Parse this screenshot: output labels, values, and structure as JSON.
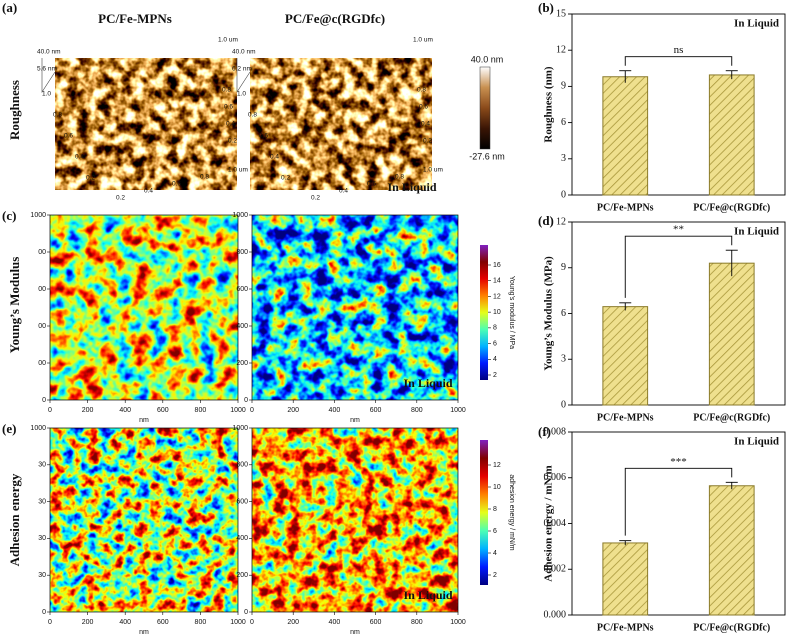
{
  "figure": {
    "panel_labels": [
      "(a)",
      "(b)",
      "(c)",
      "(d)",
      "(e)",
      "(f)"
    ],
    "row_labels": [
      "Roughness",
      "Young’s Modulus",
      "Adhesion energy"
    ],
    "column_titles": [
      "PC/Fe-MPNs",
      "PC/Fe@c(RGDfc)"
    ],
    "condition": "In Liquid",
    "afm_3d": [
      {
        "z_labels": [
          "40.0 nm",
          "5.6 nm"
        ],
        "top_label": "1.0 um",
        "depth_ticks": [
          "1.0",
          "0.8",
          "0.6",
          "0.4",
          "0.2"
        ],
        "side_ticks": [
          "0.8",
          "0.6",
          "0.4",
          "0.2"
        ],
        "width_ticks": [
          "0.2",
          "0.4",
          "0.6",
          "0.8",
          "1.0 um"
        ]
      },
      {
        "z_labels": [
          "40.0 nm",
          "6.2 nm"
        ],
        "top_label": "1.0 um",
        "depth_ticks": [
          "1.0",
          "0.8",
          "0.6",
          "0.4",
          "0.2"
        ],
        "side_ticks": [
          "0.8",
          "0.6",
          "0.4",
          "0.2"
        ],
        "width_ticks": [
          "0.2",
          "0.4",
          "0.6",
          "0.8",
          "1.0 um"
        ]
      }
    ],
    "height_colorbar": {
      "max_label": "40.0 nm",
      "min_label": "-27.6 nm"
    },
    "map_axes": {
      "xticks": [
        0,
        200,
        400,
        600,
        800,
        1000
      ],
      "yticks": [
        0,
        200,
        400,
        600,
        800,
        1000
      ],
      "xlabel": "nm",
      "cropped_yticks": [
        [
          "1000",
          "00",
          "00",
          "00",
          "00",
          "0"
        ],
        [
          "1000",
          "30",
          "30",
          "30",
          "30",
          "0"
        ]
      ]
    },
    "modulus_colorbar": {
      "ticks": [
        2,
        4,
        6,
        8,
        10,
        12,
        14,
        16
      ],
      "label": "Young’s modulus / MPa"
    },
    "adhesion_colorbar": {
      "ticks": [
        2,
        4,
        6,
        8,
        10,
        12
      ],
      "label": "adhesion energy / mN/m"
    }
  },
  "chart_data": [
    {
      "type": "bar",
      "annotation": "In Liquid",
      "ylabel": "Roughness (nm)",
      "categories": [
        "PC/Fe-MPNs",
        "PC/Fe@c(RGDfc)"
      ],
      "values": [
        9.8,
        9.95
      ],
      "errors": [
        0.5,
        0.35
      ],
      "significance": "ns",
      "color": "#efe08e",
      "ylim": [
        0,
        15
      ],
      "yticks": [
        0,
        3,
        6,
        9,
        12,
        15
      ]
    },
    {
      "type": "bar",
      "annotation": "In Liquid",
      "ylabel": "Young’s Modulus (MPa)",
      "categories": [
        "PC/Fe-MPNs",
        "PC/Fe@c(RGDfc)"
      ],
      "values": [
        6.45,
        9.3
      ],
      "errors": [
        0.25,
        0.85
      ],
      "significance": "**",
      "color": "#efe08e",
      "ylim": [
        0,
        12
      ],
      "yticks": [
        0,
        3,
        6,
        9,
        12
      ]
    },
    {
      "type": "bar",
      "annotation": "In Liquid",
      "ylabel": "Adhesion energy / mN/m",
      "categories": [
        "PC/Fe-MPNs",
        "PC/Fe@c(RGDfc)"
      ],
      "values": [
        0.00315,
        0.00565
      ],
      "errors": [
        0.0001,
        0.00015
      ],
      "significance": "***",
      "color": "#efe08e",
      "ylim": [
        0,
        0.008
      ],
      "yticks": [
        {
          "value": 0,
          "label": "0.000"
        },
        {
          "value": 0.002,
          "label": "0.002"
        },
        {
          "value": 0.004,
          "label": "0.004"
        },
        {
          "value": 0.006,
          "label": "0.006"
        },
        {
          "value": 0.008,
          "label": "0.008"
        }
      ]
    }
  ]
}
